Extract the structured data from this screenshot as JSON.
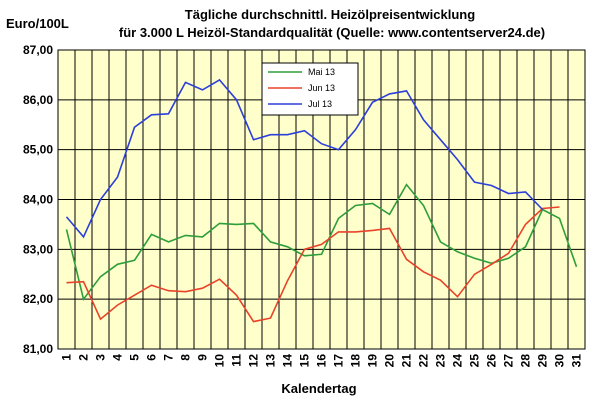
{
  "chart_data": {
    "type": "line",
    "title_line1": "Tägliche durchschnittl. Heizölpreisentwicklung",
    "title_line2": "für 3.000 L Heizöl-Standardqualität (Quelle: www.contentserver24.de)",
    "ylabel": "Euro/100L",
    "xlabel": "Kalendertag",
    "ylim": [
      81,
      87
    ],
    "yticks": [
      "81,00",
      "82,00",
      "83,00",
      "84,00",
      "85,00",
      "86,00",
      "87,00"
    ],
    "x": [
      1,
      2,
      3,
      4,
      5,
      6,
      7,
      8,
      9,
      10,
      11,
      12,
      13,
      14,
      15,
      16,
      17,
      18,
      19,
      20,
      21,
      22,
      23,
      24,
      25,
      26,
      27,
      28,
      29,
      30,
      31
    ],
    "grid": true,
    "plot_background": "#ffffcc",
    "legend_position": "top-center",
    "series": [
      {
        "name": "Mai 13",
        "color": "#2e9e3a",
        "values": [
          83.4,
          82.0,
          82.45,
          82.7,
          82.78,
          83.3,
          83.15,
          83.28,
          83.25,
          83.52,
          83.5,
          83.52,
          83.15,
          83.05,
          82.87,
          82.9,
          83.62,
          83.88,
          83.92,
          83.7,
          84.3,
          83.88,
          83.15,
          82.95,
          82.82,
          82.72,
          82.82,
          83.05,
          83.8,
          83.62,
          82.65
        ]
      },
      {
        "name": "Jun 13",
        "color": "#e8432a",
        "values": [
          82.33,
          82.35,
          81.6,
          81.88,
          82.08,
          82.28,
          82.17,
          82.15,
          82.22,
          82.4,
          82.08,
          81.55,
          81.62,
          82.37,
          83.0,
          83.1,
          83.35,
          83.35,
          83.38,
          83.42,
          82.8,
          82.55,
          82.38,
          82.05,
          82.5,
          82.7,
          82.92,
          83.5,
          83.82,
          83.85,
          null
        ]
      },
      {
        "name": "Jul 13",
        "color": "#2c3fd8",
        "values": [
          83.65,
          83.25,
          84.0,
          84.45,
          85.45,
          85.7,
          85.72,
          86.35,
          86.2,
          86.4,
          86.0,
          85.2,
          85.3,
          85.3,
          85.38,
          85.12,
          85.0,
          85.4,
          85.95,
          86.12,
          86.18,
          85.6,
          85.2,
          84.8,
          84.35,
          84.28,
          84.12,
          84.15,
          83.8,
          null,
          null
        ]
      }
    ]
  }
}
